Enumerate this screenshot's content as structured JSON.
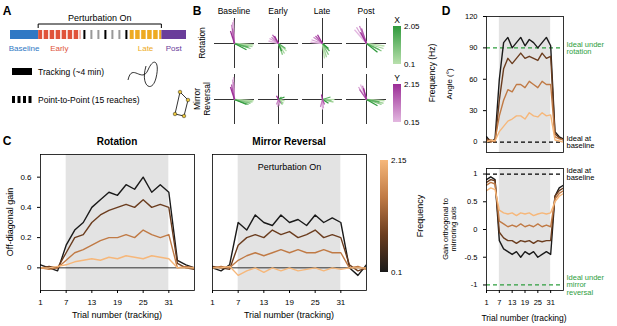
{
  "diagram": {
    "panel": "A",
    "bracket_label": "Perturbation On",
    "segments": [
      {
        "label": "Baseline",
        "color": "#2f78c4"
      },
      {
        "label": "Early",
        "color": "#e0533a"
      },
      {
        "label": "Late",
        "color": "#eeaa22"
      },
      {
        "label": "Post",
        "color": "#6a3d9a"
      }
    ],
    "legend": [
      {
        "label": "Tracking (~4 min)",
        "line_style": "solid"
      },
      {
        "label": "Point-to-Point (15 reaches)",
        "line_style": "dashed"
      }
    ]
  },
  "chart_data": [
    {
      "panel": "B",
      "type": "vector",
      "columns": [
        "Baseline",
        "Early",
        "Late",
        "Post"
      ],
      "rows": [
        "Rotation",
        "Mirror Reversal"
      ],
      "xlim": [
        -1,
        1
      ],
      "ylim": [
        -1,
        1
      ],
      "tick_labels": false,
      "origin": [
        0,
        0
      ],
      "x_frequencies": [
        0.1,
        0.4,
        0.85,
        1.45,
        2.05
      ],
      "y_frequencies": [
        0.15,
        0.45,
        0.9,
        1.55,
        2.15
      ],
      "colorbar_title": "Frequency (Hz)",
      "colorbars": [
        {
          "label": "X",
          "range": [
            0.1,
            2.05
          ],
          "ticks": [
            0.1,
            2.05
          ],
          "colors": [
            "#b9e0ad",
            "#2f9a3c"
          ]
        },
        {
          "label": "Y",
          "range": [
            0.15,
            2.15
          ],
          "ticks": [
            0.15,
            2.15
          ],
          "colors": [
            "#e3b8e0",
            "#9b2d96"
          ]
        }
      ],
      "cells": [
        [
          {
            "x_vectors": [
              [
                0.95,
                -0.05
              ],
              [
                0.9,
                -0.12
              ],
              [
                0.8,
                -0.2
              ],
              [
                0.7,
                -0.15
              ],
              [
                0.6,
                -0.25
              ]
            ],
            "y_vectors": [
              [
                -0.05,
                0.95
              ],
              [
                -0.1,
                0.85
              ],
              [
                -0.15,
                0.75
              ],
              [
                -0.1,
                0.6
              ],
              [
                -0.2,
                0.5
              ]
            ]
          },
          {
            "x_vectors": [
              [
                0.4,
                -0.3
              ],
              [
                0.3,
                -0.4
              ],
              [
                0.2,
                -0.45
              ],
              [
                0.35,
                -0.2
              ],
              [
                0.15,
                -0.3
              ]
            ],
            "y_vectors": [
              [
                -0.5,
                0.1
              ],
              [
                -0.45,
                0.2
              ],
              [
                -0.35,
                0.25
              ],
              [
                -0.3,
                0.35
              ],
              [
                -0.2,
                0.3
              ]
            ]
          },
          {
            "x_vectors": [
              [
                0.1,
                -0.6
              ],
              [
                0.2,
                -0.55
              ],
              [
                0.3,
                -0.45
              ],
              [
                0.35,
                -0.3
              ],
              [
                0.3,
                -0.2
              ]
            ],
            "y_vectors": [
              [
                -0.6,
                0.05
              ],
              [
                -0.55,
                0.15
              ],
              [
                -0.45,
                0.25
              ],
              [
                -0.35,
                0.3
              ],
              [
                -0.25,
                0.35
              ]
            ]
          },
          {
            "x_vectors": [
              [
                0.9,
                -0.1
              ],
              [
                0.85,
                -0.2
              ],
              [
                0.75,
                -0.3
              ],
              [
                0.65,
                -0.25
              ],
              [
                0.55,
                -0.35
              ]
            ],
            "y_vectors": [
              [
                -0.6,
                0.55
              ],
              [
                -0.5,
                0.65
              ],
              [
                -0.35,
                0.7
              ],
              [
                -0.25,
                0.6
              ],
              [
                -0.3,
                0.45
              ]
            ]
          }
        ],
        [
          {
            "x_vectors": [
              [
                0.95,
                -0.05
              ],
              [
                0.9,
                -0.1
              ],
              [
                0.8,
                -0.15
              ],
              [
                0.7,
                -0.2
              ],
              [
                0.6,
                -0.2
              ]
            ],
            "y_vectors": [
              [
                -0.05,
                0.9
              ],
              [
                -0.1,
                0.8
              ],
              [
                -0.05,
                0.7
              ],
              [
                -0.15,
                0.6
              ],
              [
                -0.2,
                0.5
              ]
            ]
          },
          {
            "x_vectors": [
              [
                0.3,
                -0.05
              ],
              [
                0.25,
                -0.15
              ],
              [
                0.2,
                -0.2
              ],
              [
                0.15,
                0.1
              ],
              [
                0.3,
                0.1
              ]
            ],
            "y_vectors": [
              [
                -0.05,
                -0.3
              ],
              [
                0.05,
                -0.25
              ],
              [
                -0.1,
                -0.2
              ],
              [
                0.1,
                -0.15
              ],
              [
                -0.1,
                0.15
              ]
            ]
          },
          {
            "x_vectors": [
              [
                0.6,
                0.0
              ],
              [
                0.55,
                -0.1
              ],
              [
                0.45,
                -0.05
              ],
              [
                0.4,
                0.1
              ],
              [
                0.3,
                -0.15
              ]
            ],
            "y_vectors": [
              [
                0.0,
                -0.4
              ],
              [
                0.05,
                -0.35
              ],
              [
                -0.1,
                -0.3
              ],
              [
                0.1,
                -0.2
              ],
              [
                -0.05,
                0.2
              ]
            ]
          },
          {
            "x_vectors": [
              [
                0.9,
                -0.05
              ],
              [
                0.85,
                -0.15
              ],
              [
                0.75,
                -0.2
              ],
              [
                0.65,
                -0.1
              ],
              [
                0.55,
                -0.25
              ]
            ],
            "y_vectors": [
              [
                -0.3,
                0.6
              ],
              [
                -0.4,
                0.5
              ],
              [
                -0.2,
                0.55
              ],
              [
                -0.35,
                0.4
              ],
              [
                -0.15,
                0.45
              ]
            ]
          }
        ]
      ]
    },
    {
      "panel": "C",
      "type": "line",
      "title": "Rotation",
      "x_label": "Trial number (tracking)",
      "y_label": "Off-diagonal gain",
      "x": [
        1,
        3,
        5,
        7,
        9,
        11,
        13,
        15,
        17,
        19,
        21,
        23,
        25,
        27,
        29,
        31,
        33,
        35,
        37
      ],
      "xlim": [
        1,
        37
      ],
      "xticks": [
        1,
        7,
        13,
        19,
        25,
        31
      ],
      "ylim": [
        -0.15,
        0.75
      ],
      "yticks": [
        0,
        0.2,
        0.4,
        0.6
      ],
      "hline": 0,
      "perturbation": [
        7,
        31
      ],
      "series": [
        {
          "color": "#1a1a1a",
          "values": [
            0.02,
            0.0,
            -0.02,
            0.15,
            0.25,
            0.3,
            0.4,
            0.45,
            0.5,
            0.48,
            0.55,
            0.52,
            0.6,
            0.5,
            0.55,
            0.5,
            0.05,
            0.02,
            0.0
          ]
        },
        {
          "color": "#6b3d1f",
          "values": [
            0.0,
            0.01,
            0.0,
            0.1,
            0.2,
            0.22,
            0.3,
            0.35,
            0.38,
            0.4,
            0.42,
            0.4,
            0.45,
            0.4,
            0.42,
            0.4,
            0.03,
            0.0,
            -0.01
          ]
        },
        {
          "color": "#c07a45",
          "values": [
            0.0,
            -0.01,
            0.0,
            0.05,
            0.1,
            0.12,
            0.15,
            0.18,
            0.2,
            0.2,
            0.22,
            0.2,
            0.25,
            0.22,
            0.2,
            0.22,
            0.0,
            0.01,
            0.0
          ]
        },
        {
          "color": "#f6b77a",
          "values": [
            0.0,
            0.0,
            0.01,
            0.02,
            0.04,
            0.05,
            0.06,
            0.05,
            0.07,
            0.06,
            0.08,
            0.07,
            0.06,
            0.08,
            0.07,
            0.06,
            0.0,
            0.0,
            0.0
          ]
        }
      ]
    },
    {
      "type": "line",
      "title": "Mirror Reversal",
      "x_label": "Trial number (tracking)",
      "tick_labels": "x",
      "x": [
        1,
        3,
        5,
        7,
        9,
        11,
        13,
        15,
        17,
        19,
        21,
        23,
        25,
        27,
        29,
        31,
        33,
        35,
        37
      ],
      "xlim": [
        1,
        37
      ],
      "xticks": [
        1,
        7,
        13,
        19,
        25,
        31
      ],
      "ylim": [
        -0.15,
        0.75
      ],
      "yticks": [
        0,
        0.2,
        0.4,
        0.6
      ],
      "hline": 0,
      "perturbation": [
        7,
        31
      ],
      "shade_label": "Perturbation On",
      "colorbar": {
        "label": "Frequency",
        "range": [
          0.1,
          2.15
        ],
        "ticks": [
          0.1,
          2.15
        ],
        "colors": [
          "#1a1a1a",
          "#6b3d1f",
          "#c07a45",
          "#f6b77a"
        ]
      },
      "series": [
        {
          "color": "#1a1a1a",
          "values": [
            0.0,
            -0.02,
            0.02,
            0.3,
            0.25,
            0.35,
            0.3,
            0.28,
            0.35,
            0.3,
            0.32,
            0.28,
            0.35,
            0.3,
            0.33,
            0.3,
            0.0,
            -0.05,
            0.02
          ]
        },
        {
          "color": "#6b3d1f",
          "values": [
            0.01,
            0.0,
            -0.01,
            0.15,
            0.2,
            0.22,
            0.2,
            0.25,
            0.22,
            0.24,
            0.2,
            0.22,
            0.25,
            0.2,
            0.22,
            0.2,
            0.02,
            -0.02,
            0.0
          ]
        },
        {
          "color": "#c07a45",
          "values": [
            0.0,
            0.01,
            0.0,
            0.05,
            0.08,
            0.1,
            0.08,
            0.1,
            0.12,
            0.1,
            0.12,
            0.1,
            0.1,
            0.12,
            0.1,
            0.1,
            0.0,
            0.01,
            -0.01
          ]
        },
        {
          "color": "#f6b77a",
          "values": [
            0.0,
            0.0,
            0.01,
            -0.05,
            -0.02,
            0.0,
            -0.03,
            0.0,
            -0.02,
            0.0,
            -0.02,
            -0.01,
            0.0,
            -0.02,
            0.0,
            -0.01,
            0.0,
            0.0,
            0.0
          ]
        }
      ]
    },
    {
      "panel": "D",
      "type": "line",
      "y_label": "Angle (°)",
      "tick_labels": "y",
      "x": [
        1,
        3,
        5,
        7,
        9,
        11,
        13,
        15,
        17,
        19,
        21,
        23,
        25,
        27,
        29,
        31,
        33,
        35,
        37
      ],
      "xlim": [
        1,
        37
      ],
      "xticks": [
        1,
        7,
        13,
        19,
        25,
        31
      ],
      "ylim": [
        -10,
        120
      ],
      "yticks": [
        0,
        30,
        60,
        90,
        120
      ],
      "perturbation": [
        7,
        31
      ],
      "reference_lines": [
        {
          "value": 90,
          "label": "Ideal under rotation",
          "color": "#2e9e3e",
          "line_style": "dashed"
        },
        {
          "value": 0,
          "label": "Ideal at baseline",
          "color": "#000000",
          "line_style": "dashed"
        }
      ],
      "series": [
        {
          "color": "#1a1a1a",
          "values": [
            5,
            0,
            3,
            60,
            95,
            100,
            90,
            95,
            100,
            92,
            98,
            95,
            90,
            95,
            100,
            92,
            10,
            5,
            3
          ]
        },
        {
          "color": "#6b3d1f",
          "values": [
            3,
            2,
            0,
            40,
            70,
            80,
            75,
            80,
            85,
            80,
            82,
            80,
            78,
            85,
            80,
            82,
            8,
            4,
            2
          ]
        },
        {
          "color": "#c07a45",
          "values": [
            2,
            0,
            2,
            25,
            40,
            50,
            48,
            55,
            55,
            52,
            58,
            55,
            52,
            58,
            55,
            55,
            5,
            3,
            2
          ]
        },
        {
          "color": "#f6b77a",
          "values": [
            0,
            2,
            1,
            10,
            15,
            20,
            22,
            25,
            25,
            22,
            28,
            25,
            24,
            28,
            25,
            26,
            2,
            1,
            0
          ]
        }
      ]
    },
    {
      "type": "line",
      "x_label": "Trial number (tracking)",
      "y_label": "Gain orthogonal to mirroring axis",
      "x": [
        1,
        3,
        5,
        7,
        9,
        11,
        13,
        15,
        17,
        19,
        21,
        23,
        25,
        27,
        29,
        31,
        33,
        35,
        37
      ],
      "xlim": [
        1,
        37
      ],
      "xticks": [
        1,
        7,
        13,
        19,
        25,
        31
      ],
      "ylim": [
        -1.1,
        1.1
      ],
      "yticks": [
        -1,
        -0.5,
        0,
        0.5,
        1
      ],
      "perturbation": [
        7,
        31
      ],
      "reference_lines": [
        {
          "value": 1,
          "label": "Ideal at baseline",
          "color": "#000000",
          "line_style": "dashed"
        },
        {
          "value": -1,
          "label": "Ideal under mirror reversal",
          "color": "#2e9e3e",
          "line_style": "dashed"
        }
      ],
      "series": [
        {
          "color": "#1a1a1a",
          "values": [
            0.9,
            0.95,
            0.9,
            -0.2,
            -0.35,
            -0.4,
            -0.45,
            -0.4,
            -0.5,
            -0.4,
            -0.45,
            -0.4,
            -0.5,
            -0.45,
            -0.4,
            -0.45,
            0.6,
            0.75,
            0.8
          ]
        },
        {
          "color": "#6b3d1f",
          "values": [
            0.85,
            0.9,
            0.88,
            -0.05,
            -0.15,
            -0.2,
            -0.2,
            -0.25,
            -0.2,
            -0.22,
            -0.2,
            -0.25,
            -0.2,
            -0.22,
            -0.2,
            -0.2,
            0.6,
            0.7,
            0.75
          ]
        },
        {
          "color": "#c07a45",
          "values": [
            0.8,
            0.85,
            0.82,
            0.15,
            0.1,
            0.05,
            0.08,
            0.05,
            0.1,
            0.05,
            0.08,
            0.05,
            0.1,
            0.05,
            0.08,
            0.05,
            0.55,
            0.65,
            0.7
          ]
        },
        {
          "color": "#f6b77a",
          "values": [
            0.7,
            0.75,
            0.72,
            0.35,
            0.3,
            0.28,
            0.3,
            0.25,
            0.3,
            0.28,
            0.3,
            0.25,
            0.28,
            0.3,
            0.28,
            0.3,
            0.5,
            0.6,
            0.65
          ]
        }
      ]
    }
  ]
}
